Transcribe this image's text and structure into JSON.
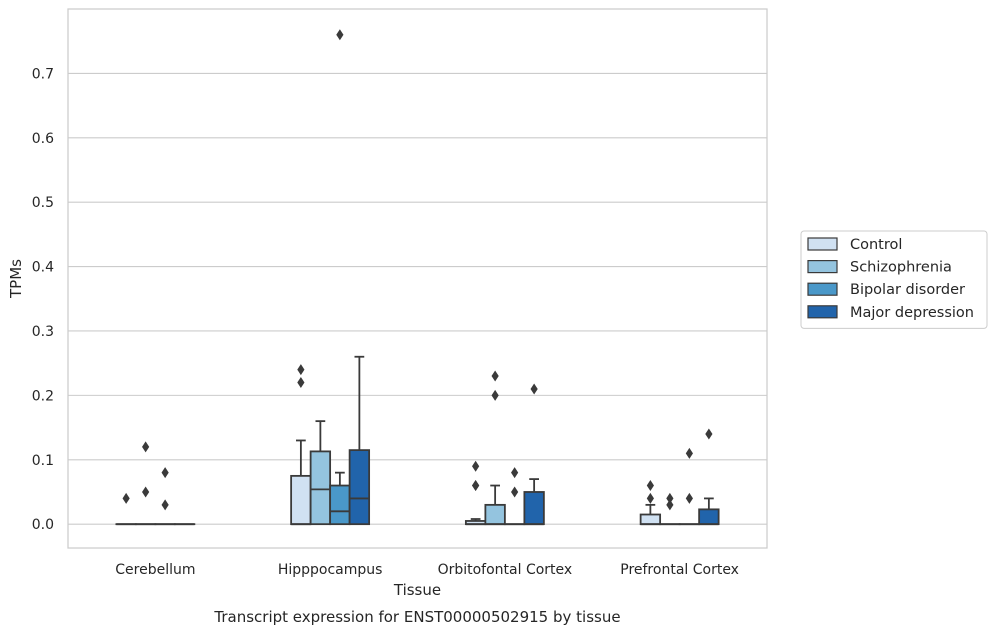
{
  "chart_data": {
    "type": "box",
    "title": "Transcript expression for ENST00000502915 by tissue",
    "xlabel": "Tissue",
    "ylabel": "TPMs",
    "ylim": [
      -0.037,
      0.8
    ],
    "yticks": [
      "0.0",
      "0.1",
      "0.2",
      "0.3",
      "0.4",
      "0.5",
      "0.6",
      "0.7"
    ],
    "grid": true,
    "legend_position": "right",
    "categories": [
      "Cerebellum",
      "Hipppocampus",
      "Orbitofontal Cortex",
      "Prefrontal Cortex"
    ],
    "series": [
      {
        "name": "Control",
        "color": "#d0e1f2",
        "boxes": [
          {
            "q1": 0,
            "median": 0,
            "q3": 0,
            "whisker_low": 0,
            "whisker_high": 0,
            "outliers": [
              0.04
            ]
          },
          {
            "q1": 0,
            "median": 0,
            "q3": 0.075,
            "whisker_low": 0,
            "whisker_high": 0.13,
            "outliers": [
              0.22,
              0.24
            ]
          },
          {
            "q1": 0,
            "median": 0,
            "q3": 0.005,
            "whisker_low": 0,
            "whisker_high": 0.008,
            "outliers": [
              0.06,
              0.06,
              0.09
            ]
          },
          {
            "q1": 0,
            "median": 0,
            "q3": 0.015,
            "whisker_low": 0,
            "whisker_high": 0.03,
            "outliers": [
              0.04,
              0.06
            ]
          }
        ]
      },
      {
        "name": "Schizophrenia",
        "color": "#94c4df",
        "boxes": [
          {
            "q1": 0,
            "median": 0,
            "q3": 0,
            "whisker_low": 0,
            "whisker_high": 0,
            "outliers": [
              0.05,
              0.12
            ]
          },
          {
            "q1": 0,
            "median": 0.054,
            "q3": 0.113,
            "whisker_low": 0,
            "whisker_high": 0.16,
            "outliers": []
          },
          {
            "q1": 0,
            "median": 0,
            "q3": 0.03,
            "whisker_low": 0,
            "whisker_high": 0.06,
            "outliers": [
              0.2,
              0.23
            ]
          },
          {
            "q1": 0,
            "median": 0,
            "q3": 0,
            "whisker_low": 0,
            "whisker_high": 0,
            "outliers": [
              0.03,
              0.04
            ]
          }
        ]
      },
      {
        "name": "Bipolar disorder",
        "color": "#4a98c9",
        "boxes": [
          {
            "q1": 0,
            "median": 0,
            "q3": 0,
            "whisker_low": 0,
            "whisker_high": 0,
            "outliers": [
              0.03,
              0.08
            ]
          },
          {
            "q1": 0,
            "median": 0.02,
            "q3": 0.06,
            "whisker_low": 0,
            "whisker_high": 0.08,
            "outliers": [
              0.76
            ]
          },
          {
            "q1": 0,
            "median": 0,
            "q3": 0,
            "whisker_low": 0,
            "whisker_high": 0,
            "outliers": [
              0.05,
              0.08
            ]
          },
          {
            "q1": 0,
            "median": 0,
            "q3": 0,
            "whisker_low": 0,
            "whisker_high": 0,
            "outliers": [
              0.04,
              0.11
            ]
          }
        ]
      },
      {
        "name": "Major depression",
        "color": "#2164ab",
        "boxes": [
          {
            "q1": 0,
            "median": 0,
            "q3": 0,
            "whisker_low": 0,
            "whisker_high": 0,
            "outliers": []
          },
          {
            "q1": 0,
            "median": 0.04,
            "q3": 0.115,
            "whisker_low": 0,
            "whisker_high": 0.26,
            "outliers": []
          },
          {
            "q1": 0,
            "median": 0,
            "q3": 0.05,
            "whisker_low": 0,
            "whisker_high": 0.07,
            "outliers": [
              0.21
            ]
          },
          {
            "q1": 0,
            "median": 0,
            "q3": 0.023,
            "whisker_low": 0,
            "whisker_high": 0.04,
            "outliers": [
              0.14
            ]
          }
        ]
      }
    ]
  }
}
